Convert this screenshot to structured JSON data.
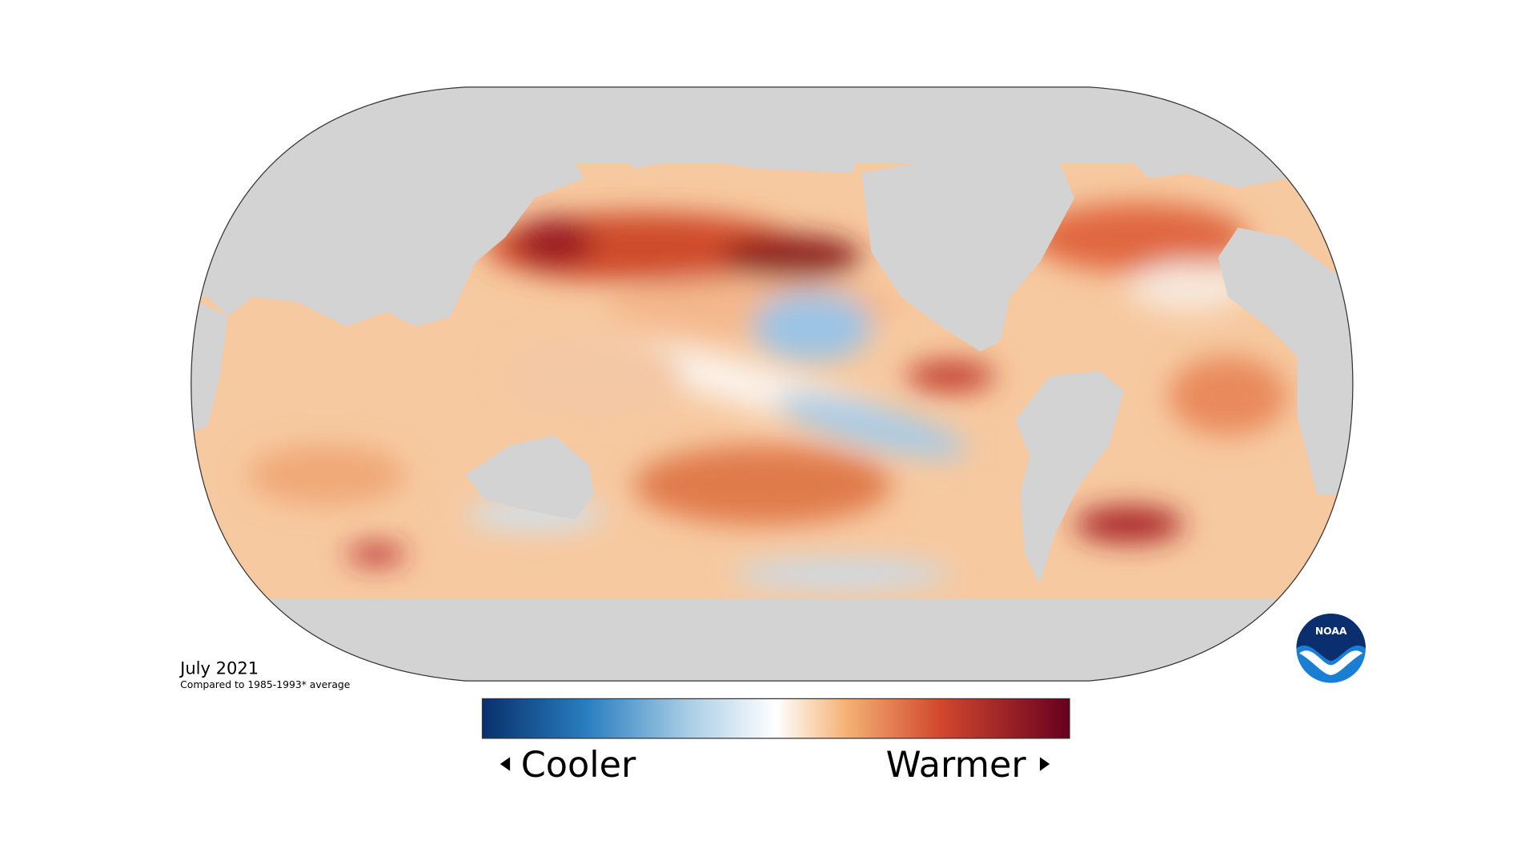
{
  "map": {
    "date": "July 2021",
    "baseline": "Compared to 1985-1993* average"
  },
  "legend": {
    "low": "Cooler",
    "high": "Warmer"
  },
  "logo": {
    "text": "NOAA"
  }
}
